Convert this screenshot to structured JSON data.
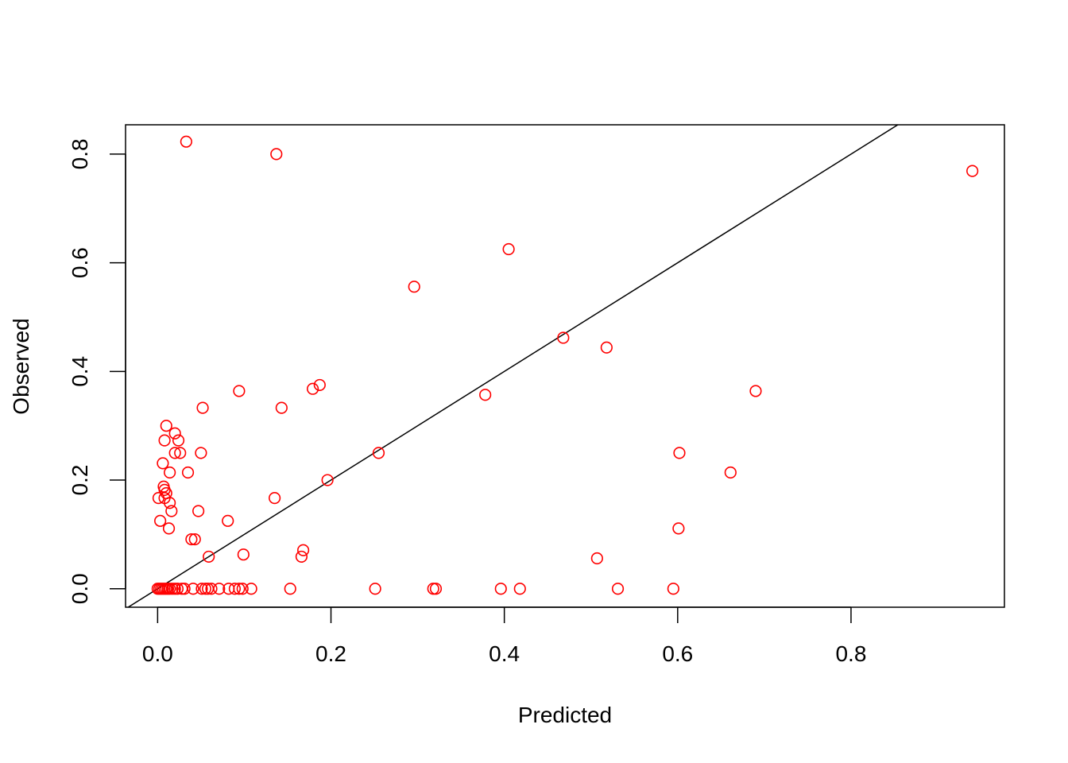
{
  "chart_data": {
    "type": "scatter",
    "title": "",
    "xlabel": "Predicted",
    "ylabel": "Observed",
    "xlim": [
      -0.037,
      0.977
    ],
    "ylim": [
      -0.034,
      0.854
    ],
    "x_ticks": [
      0.0,
      0.2,
      0.4,
      0.6,
      0.8
    ],
    "x_tick_labels": [
      "0.0",
      "0.2",
      "0.4",
      "0.6",
      "0.8"
    ],
    "y_ticks": [
      0.0,
      0.2,
      0.4,
      0.6,
      0.8
    ],
    "y_tick_labels": [
      "0.0",
      "0.2",
      "0.4",
      "0.6",
      "0.8"
    ],
    "grid": false,
    "marker_color": "#ff0000",
    "reference_line": {
      "type": "identity",
      "intercept": 0,
      "slope": 1,
      "color": "#000000"
    },
    "points": [
      {
        "x": 0.033,
        "y": 0.823
      },
      {
        "x": 0.137,
        "y": 0.8
      },
      {
        "x": 0.94,
        "y": 0.769
      },
      {
        "x": 0.405,
        "y": 0.625
      },
      {
        "x": 0.296,
        "y": 0.556
      },
      {
        "x": 0.468,
        "y": 0.462
      },
      {
        "x": 0.518,
        "y": 0.444
      },
      {
        "x": 0.187,
        "y": 0.375
      },
      {
        "x": 0.179,
        "y": 0.368
      },
      {
        "x": 0.094,
        "y": 0.364
      },
      {
        "x": 0.69,
        "y": 0.364
      },
      {
        "x": 0.378,
        "y": 0.357
      },
      {
        "x": 0.052,
        "y": 0.333
      },
      {
        "x": 0.143,
        "y": 0.333
      },
      {
        "x": 0.01,
        "y": 0.3
      },
      {
        "x": 0.02,
        "y": 0.286
      },
      {
        "x": 0.008,
        "y": 0.273
      },
      {
        "x": 0.024,
        "y": 0.273
      },
      {
        "x": 0.02,
        "y": 0.25
      },
      {
        "x": 0.026,
        "y": 0.25
      },
      {
        "x": 0.05,
        "y": 0.25
      },
      {
        "x": 0.255,
        "y": 0.25
      },
      {
        "x": 0.602,
        "y": 0.25
      },
      {
        "x": 0.006,
        "y": 0.231
      },
      {
        "x": 0.014,
        "y": 0.214
      },
      {
        "x": 0.035,
        "y": 0.214
      },
      {
        "x": 0.661,
        "y": 0.214
      },
      {
        "x": 0.196,
        "y": 0.2
      },
      {
        "x": 0.007,
        "y": 0.188
      },
      {
        "x": 0.008,
        "y": 0.182
      },
      {
        "x": 0.01,
        "y": 0.176
      },
      {
        "x": 0.001,
        "y": 0.167
      },
      {
        "x": 0.008,
        "y": 0.167
      },
      {
        "x": 0.135,
        "y": 0.167
      },
      {
        "x": 0.014,
        "y": 0.158
      },
      {
        "x": 0.016,
        "y": 0.143
      },
      {
        "x": 0.047,
        "y": 0.143
      },
      {
        "x": 0.003,
        "y": 0.125
      },
      {
        "x": 0.081,
        "y": 0.125
      },
      {
        "x": 0.013,
        "y": 0.111
      },
      {
        "x": 0.601,
        "y": 0.111
      },
      {
        "x": 0.039,
        "y": 0.091
      },
      {
        "x": 0.043,
        "y": 0.091
      },
      {
        "x": 0.168,
        "y": 0.071
      },
      {
        "x": 0.099,
        "y": 0.063
      },
      {
        "x": 0.059,
        "y": 0.059
      },
      {
        "x": 0.166,
        "y": 0.059
      },
      {
        "x": 0.507,
        "y": 0.056
      },
      {
        "x": 0.0,
        "y": 0.0
      },
      {
        "x": 0.002,
        "y": 0.0
      },
      {
        "x": 0.004,
        "y": 0.0
      },
      {
        "x": 0.006,
        "y": 0.0
      },
      {
        "x": 0.008,
        "y": 0.0
      },
      {
        "x": 0.01,
        "y": 0.0
      },
      {
        "x": 0.012,
        "y": 0.0
      },
      {
        "x": 0.014,
        "y": 0.0
      },
      {
        "x": 0.017,
        "y": 0.0
      },
      {
        "x": 0.02,
        "y": 0.0
      },
      {
        "x": 0.023,
        "y": 0.0
      },
      {
        "x": 0.028,
        "y": 0.0
      },
      {
        "x": 0.031,
        "y": 0.0
      },
      {
        "x": 0.041,
        "y": 0.0
      },
      {
        "x": 0.051,
        "y": 0.0
      },
      {
        "x": 0.055,
        "y": 0.0
      },
      {
        "x": 0.058,
        "y": 0.0
      },
      {
        "x": 0.062,
        "y": 0.0
      },
      {
        "x": 0.071,
        "y": 0.0
      },
      {
        "x": 0.082,
        "y": 0.0
      },
      {
        "x": 0.089,
        "y": 0.0
      },
      {
        "x": 0.094,
        "y": 0.0
      },
      {
        "x": 0.098,
        "y": 0.0
      },
      {
        "x": 0.108,
        "y": 0.0
      },
      {
        "x": 0.153,
        "y": 0.0
      },
      {
        "x": 0.251,
        "y": 0.0
      },
      {
        "x": 0.318,
        "y": 0.0
      },
      {
        "x": 0.321,
        "y": 0.0
      },
      {
        "x": 0.396,
        "y": 0.0
      },
      {
        "x": 0.418,
        "y": 0.0
      },
      {
        "x": 0.531,
        "y": 0.0
      },
      {
        "x": 0.595,
        "y": 0.0
      }
    ]
  }
}
